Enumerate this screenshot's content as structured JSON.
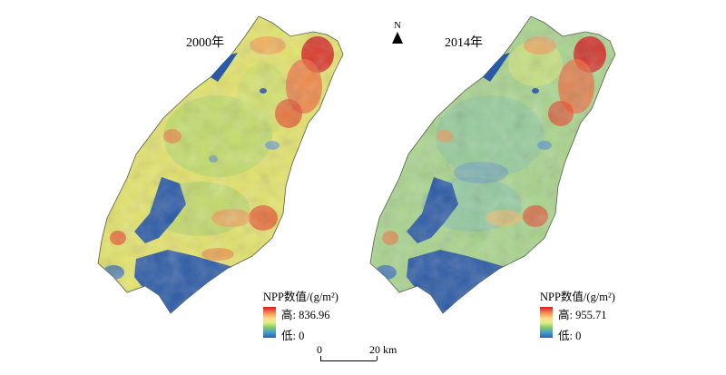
{
  "maps": [
    {
      "year_label": "2000年",
      "legend": {
        "title": "NPP数值/(g/m²)",
        "high": "高: 836.96",
        "low": "低: 0"
      }
    },
    {
      "year_label": "2014年",
      "legend": {
        "title": "NPP数值/(g/m²)",
        "high": "高: 955.71",
        "low": "低: 0"
      }
    }
  ],
  "north_arrow": {
    "label": "N"
  },
  "scale_bar": {
    "start": "0",
    "end": "20 km"
  },
  "colors": {
    "high": "#d7191c",
    "mid_high": "#fee08b",
    "mid": "#91cf60",
    "low": "#2b5fb8",
    "water": "#2a59a6"
  }
}
